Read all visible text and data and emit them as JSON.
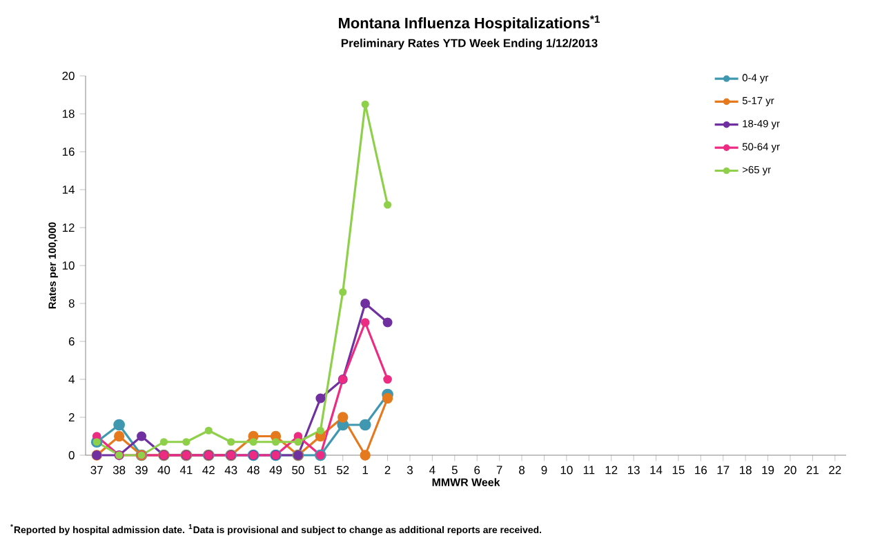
{
  "chart_data": {
    "type": "line",
    "title": "Montana Influenza Hospitalizations$^{*1}$",
    "subtitle": "Preliminary Rates YTD Week Ending 1/12/2013",
    "xlabel": "MMWR Week",
    "ylabel": "Rates per 100,000",
    "categories": [
      "37",
      "38",
      "39",
      "40",
      "41",
      "42",
      "43",
      "48",
      "49",
      "50",
      "51",
      "52",
      "1",
      "2",
      "3",
      "4",
      "5",
      "6",
      "7",
      "8",
      "9",
      "10",
      "11",
      "12",
      "13",
      "14",
      "15",
      "16",
      "17",
      "18",
      "19",
      "20",
      "21",
      "22"
    ],
    "series": [
      {
        "name": "0-4 yr",
        "color": "#3f98b0",
        "values": [
          0.7,
          1.6,
          0,
          0,
          0,
          0,
          0,
          0,
          0,
          0,
          0,
          1.6,
          1.6,
          3.2,
          null,
          null,
          null,
          null,
          null,
          null,
          null,
          null,
          null,
          null,
          null,
          null,
          null,
          null,
          null,
          null,
          null,
          null,
          null,
          null
        ]
      },
      {
        "name": "5-17 yr",
        "color": "#e5791e",
        "values": [
          0,
          1,
          0,
          0,
          0,
          0,
          0,
          1,
          1,
          0,
          1,
          2,
          0,
          3,
          null,
          null,
          null,
          null,
          null,
          null,
          null,
          null,
          null,
          null,
          null,
          null,
          null,
          null,
          null,
          null,
          null,
          null,
          null,
          null
        ]
      },
      {
        "name": "18-49 yr",
        "color": "#7030a0",
        "values": [
          0,
          0,
          1,
          0,
          0,
          0,
          0,
          0,
          0,
          0,
          3,
          4,
          8,
          7,
          null,
          null,
          null,
          null,
          null,
          null,
          null,
          null,
          null,
          null,
          null,
          null,
          null,
          null,
          null,
          null,
          null,
          null,
          null,
          null
        ]
      },
      {
        "name": "50-64 yr",
        "color": "#ec2c82",
        "values": [
          1,
          0,
          0,
          0,
          0,
          0,
          0,
          0,
          0,
          1,
          0,
          4,
          7,
          4,
          null,
          null,
          null,
          null,
          null,
          null,
          null,
          null,
          null,
          null,
          null,
          null,
          null,
          null,
          null,
          null,
          null,
          null,
          null,
          null
        ]
      },
      {
        "name": ">65 yr",
        "color": "#8fd04a",
        "values": [
          0.7,
          0,
          0,
          0.7,
          0.7,
          1.3,
          0.7,
          0.7,
          0.7,
          0.7,
          1.3,
          8.6,
          18.5,
          13.2,
          null,
          null,
          null,
          null,
          null,
          null,
          null,
          null,
          null,
          null,
          null,
          null,
          null,
          null,
          null,
          null,
          null,
          null,
          null,
          null
        ]
      }
    ],
    "ylim": [
      0,
      20
    ],
    "yticks": [
      0,
      2,
      4,
      6,
      8,
      10,
      12,
      14,
      16,
      18,
      20
    ],
    "grid": false,
    "legend": "top right",
    "marker": "circle",
    "line_style": "solid",
    "annotations": [
      "$^{*}$Reported by hospital admission date. $^{1}$Data is provisional and subject to change as additional reports are received."
    ]
  }
}
